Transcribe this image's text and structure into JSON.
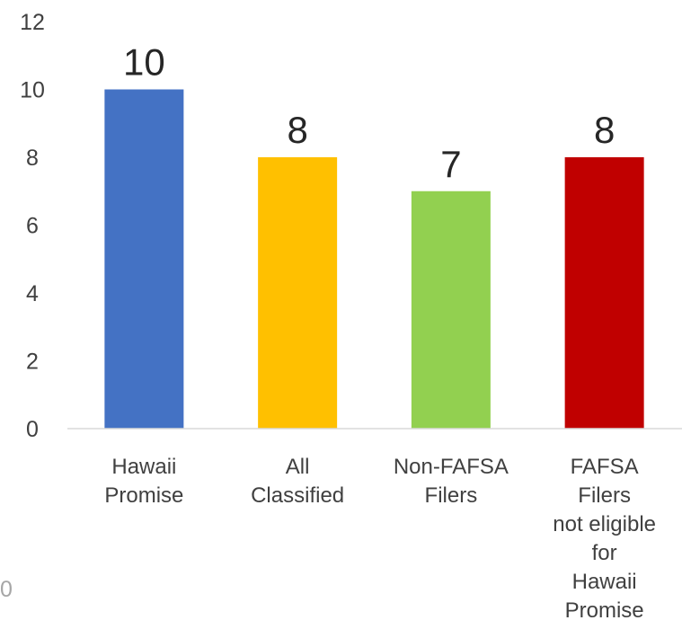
{
  "chart_data": {
    "type": "bar",
    "categories": [
      [
        "Hawaii",
        "Promise"
      ],
      [
        "All",
        "Classified"
      ],
      [
        "Non-FAFSA",
        "Filers"
      ],
      [
        "FAFSA",
        "Filers",
        "not eligible",
        "for",
        "Hawaii",
        "Promise"
      ]
    ],
    "values": [
      10,
      8,
      7,
      8
    ],
    "data_labels": [
      "10",
      "8",
      "7",
      "8"
    ],
    "colors": [
      "#4472c4",
      "#ffc000",
      "#92d050",
      "#c00000"
    ],
    "ylim": [
      0,
      12
    ],
    "yticks": [
      "0",
      "2",
      "4",
      "6",
      "8",
      "10",
      "12"
    ],
    "grid": false,
    "title": "",
    "xlabel": "",
    "ylabel": ""
  },
  "stray_text": "0"
}
